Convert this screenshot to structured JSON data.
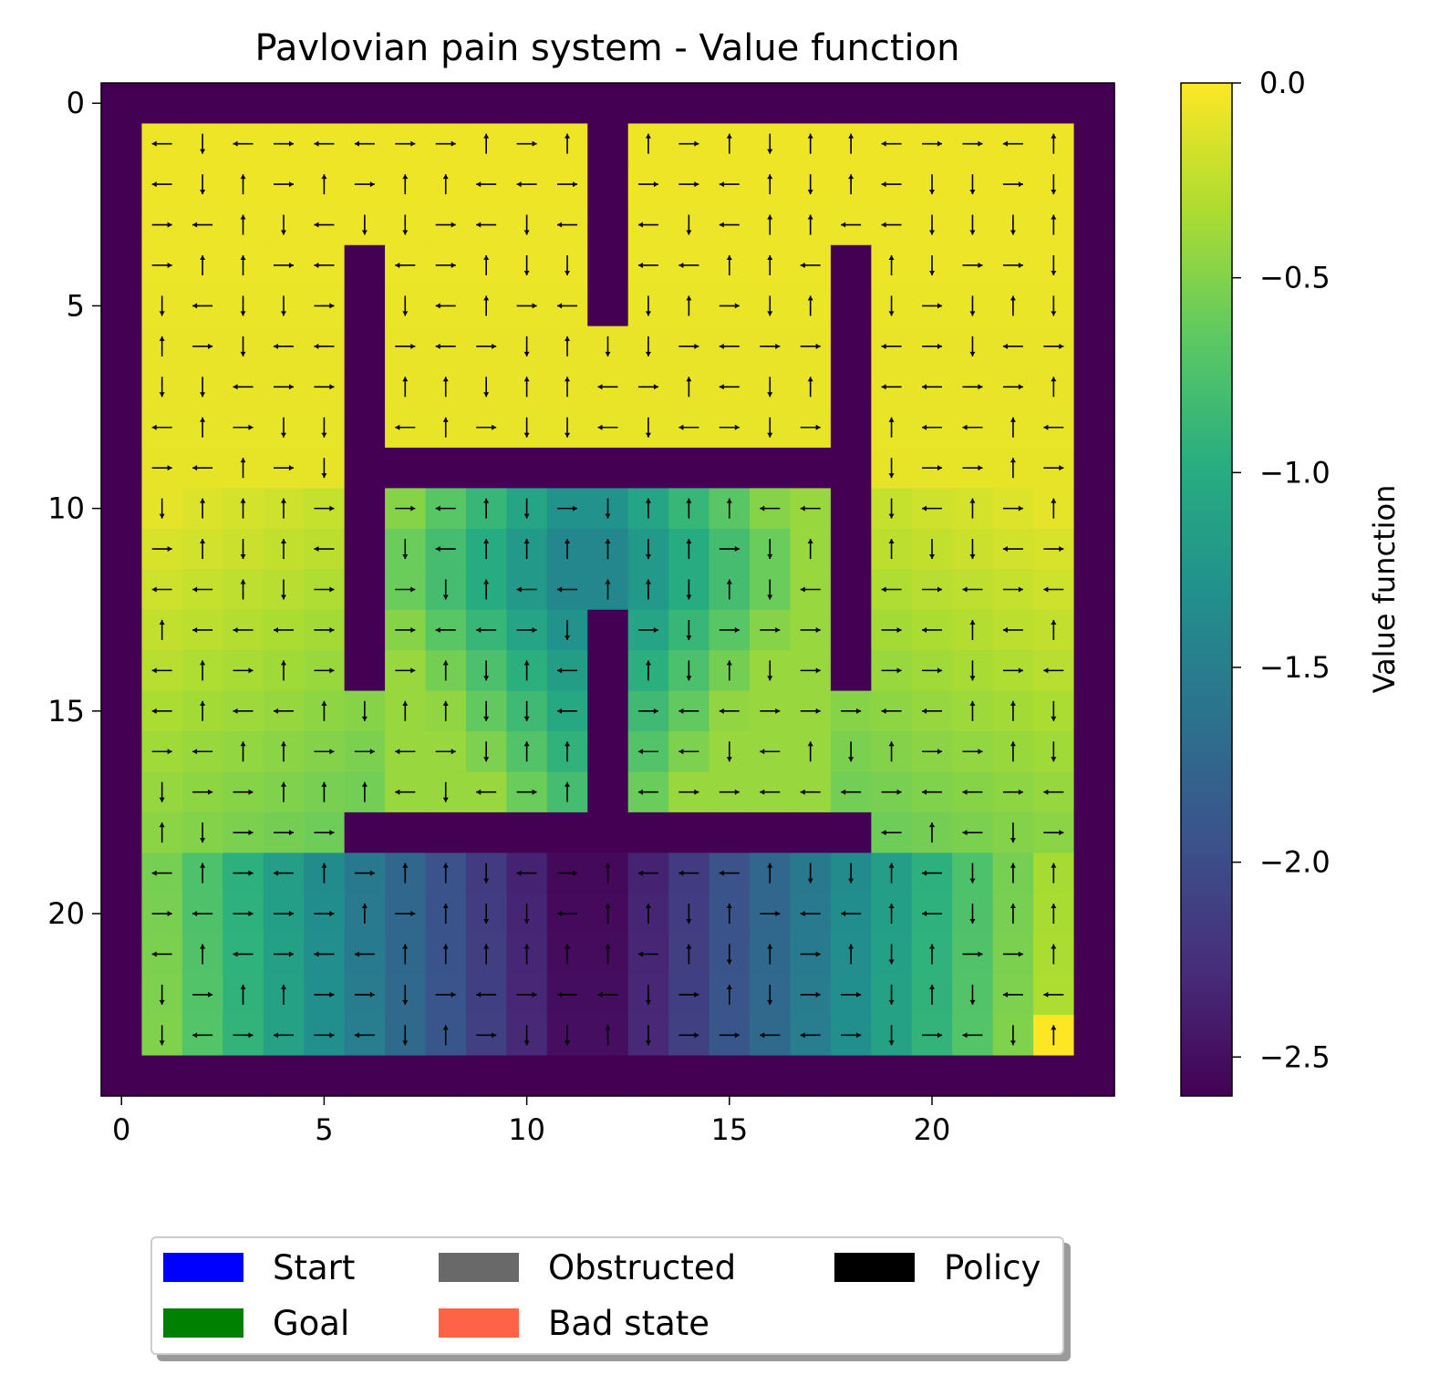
{
  "chart_data": {
    "type": "heatmap",
    "title": "Pavlovian pain system - Value function",
    "xlabel": "",
    "ylabel": "",
    "grid_size": 25,
    "xlim": [
      -0.5,
      24.5
    ],
    "ylim": [
      24.5,
      -0.5
    ],
    "x_ticks": [
      "0",
      "5",
      "10",
      "15",
      "20"
    ],
    "y_ticks": [
      "0",
      "5",
      "10",
      "15",
      "20"
    ],
    "colorbar": {
      "label": "Value function",
      "vmin": -2.6,
      "vmax": 0.0,
      "ticks": [
        "0.0",
        "−0.5",
        "−1.0",
        "−1.5",
        "−2.0",
        "−2.5"
      ],
      "colormap": "viridis"
    },
    "walls": "outer border; vertical bars col 6 rows 4-14 and col 18 rows 4-14; col 12 rows 1-5 (top) and rows 13-17; horizontal bar row 9 cols 6-18; horizontal bar row 18 cols 6-18",
    "value_regions": [
      {
        "area": "top region rows 1-8 and side columns",
        "value": -0.05
      },
      {
        "area": "middle chamber rows 10-17",
        "value": "-0.5 to -1.6"
      },
      {
        "area": "bottom chamber rows 19-23",
        "value": "-0.3 to -2.6, minimum near columns 11-12"
      },
      {
        "area": "cell row 23 col 23",
        "value": 0.0
      }
    ],
    "policy": "one arrow per free cell pointing up, down, left or right"
  },
  "legend": {
    "items": [
      {
        "label": "Start",
        "color": "#0000ff"
      },
      {
        "label": "Goal",
        "color": "#008000"
      },
      {
        "label": "Obstructed",
        "color": "#696969"
      },
      {
        "label": "Bad state",
        "color": "#ff6347"
      },
      {
        "label": "Policy",
        "color": "#000000"
      }
    ]
  }
}
